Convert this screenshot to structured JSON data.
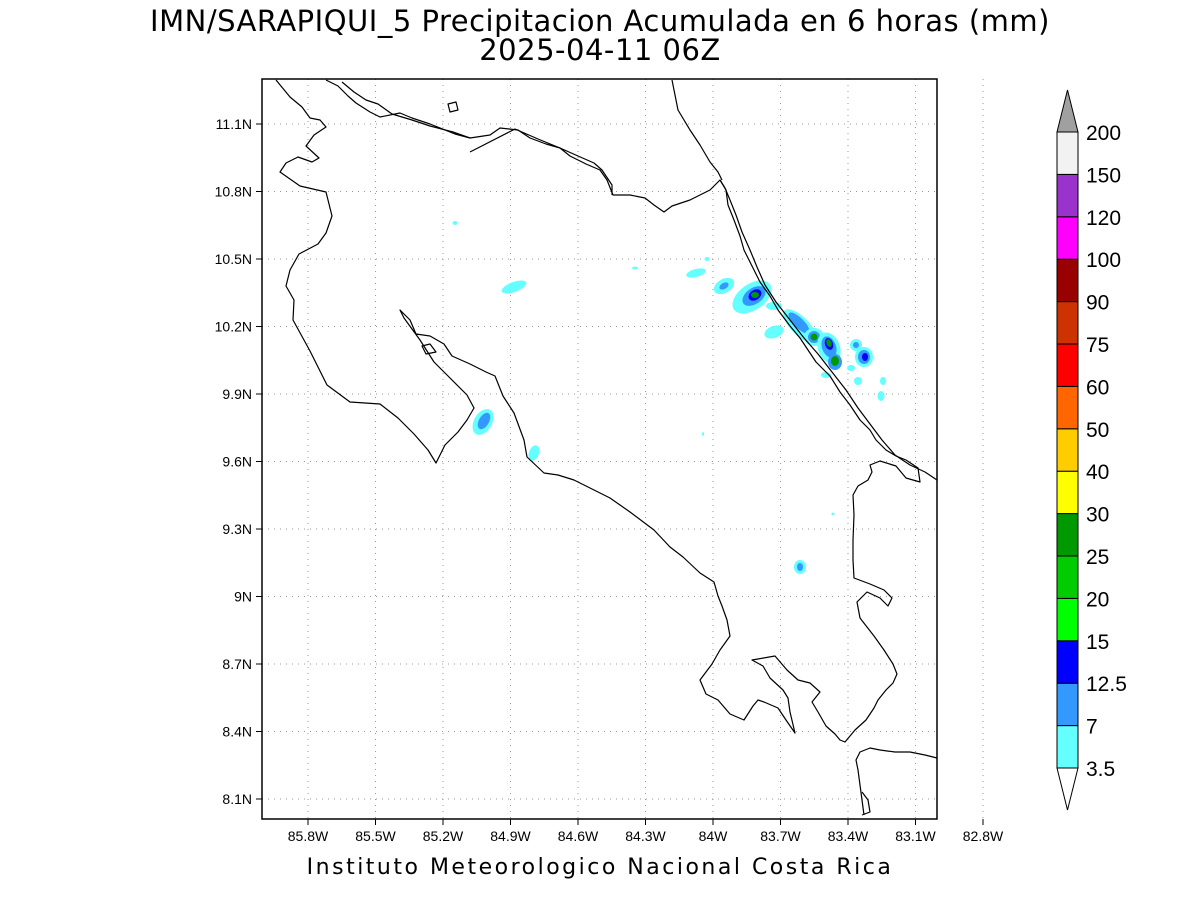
{
  "title": {
    "line1": "IMN/SARAPIQUI_5 Precipitacion Acumulada en 6 horas (mm)",
    "line2": "2025-04-11 06Z"
  },
  "footer": "Instituto Meteorologico Nacional Costa Rica",
  "map": {
    "region": "Costa Rica",
    "lon_range": [
      -86.0,
      -83.0
    ],
    "lat_range": [
      8.0,
      11.3
    ],
    "x_ticks": [
      "85.8W",
      "85.5W",
      "85.2W",
      "84.9W",
      "84.6W",
      "84.3W",
      "84W",
      "83.7W",
      "83.4W",
      "83.1W",
      "82.8W"
    ],
    "y_ticks": [
      "11.1N",
      "10.8N",
      "10.5N",
      "10.2N",
      "9.9N",
      "9.6N",
      "9.3N",
      "9N",
      "8.7N",
      "8.4N",
      "8.1N"
    ],
    "grid": "dotted"
  },
  "colorbar": {
    "levels": [
      "3.5",
      "7",
      "12.5",
      "15",
      "20",
      "25",
      "30",
      "40",
      "50",
      "60",
      "75",
      "90",
      "100",
      "120",
      "150",
      "200"
    ],
    "colors": [
      "#66ffff",
      "#3399ff",
      "#0000ff",
      "#00ff00",
      "#00cc00",
      "#009900",
      "#ffff00",
      "#ffcc00",
      "#ff6600",
      "#ff0000",
      "#cc3300",
      "#990000",
      "#ff00ff",
      "#9933cc",
      "#f2f2f2"
    ],
    "over_color": "#a0a0a0",
    "under_color": "#ffffff"
  }
}
